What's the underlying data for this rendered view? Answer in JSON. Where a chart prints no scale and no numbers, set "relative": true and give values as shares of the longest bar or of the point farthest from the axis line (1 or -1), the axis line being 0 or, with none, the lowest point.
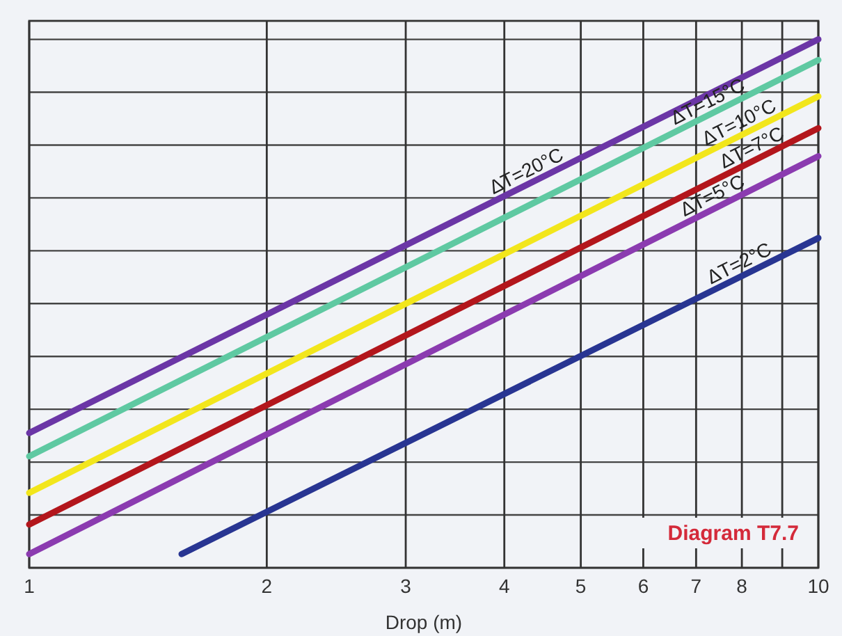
{
  "chart_data": {
    "type": "line",
    "xlabel": "Drop (m)",
    "log": "x",
    "relative": true,
    "grid": true,
    "line_style": "solid",
    "xlim": [
      1,
      10
    ],
    "xticks": [
      1,
      2,
      3,
      4,
      5,
      6,
      7,
      8,
      {
        "value": 9,
        "label": null
      },
      10
    ],
    "series": [
      {
        "name": "ΔT=20°C",
        "color": "#6b36a6",
        "x": [
          1,
          10
        ],
        "values": [
          0.255,
          1
        ]
      },
      {
        "name": "ΔT=15°C",
        "color": "#5fc9a2",
        "x": [
          1,
          10
        ],
        "values": [
          0.211,
          0.961
        ]
      },
      {
        "name": "ΔT=10°C",
        "color": "#f2e61c",
        "x": [
          1,
          10
        ],
        "values": [
          0.142,
          0.892
        ]
      },
      {
        "name": "ΔT=7°C",
        "color": "#b3161c",
        "x": [
          1,
          10
        ],
        "values": [
          0.082,
          0.832
        ]
      },
      {
        "name": "ΔT=5°C",
        "color": "#8b3bb0",
        "x": [
          1,
          10
        ],
        "values": [
          0.026,
          0.779
        ]
      },
      {
        "name": "ΔT=2°C",
        "color": "#283592",
        "x": [
          1.56,
          10
        ],
        "values": [
          0.026,
          0.624
        ]
      }
    ],
    "annotations": [
      "Diagram T7.7"
    ]
  }
}
